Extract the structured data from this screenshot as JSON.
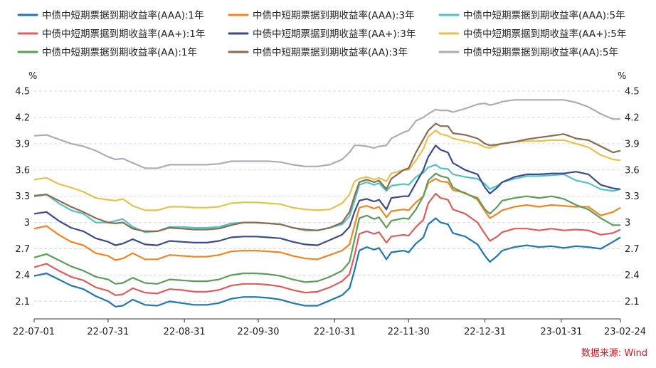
{
  "chart_data": {
    "type": "line",
    "y_unit_left": "%",
    "y_unit_right": "%",
    "ylim": [
      1.9,
      4.5
    ],
    "y_ticks": [
      "4.5",
      "4.2",
      "3.9",
      "3.6",
      "3.3",
      "3",
      "2.7",
      "2.4",
      "2.1"
    ],
    "y_tick_values": [
      4.5,
      4.2,
      3.9,
      3.6,
      3.3,
      3.0,
      2.7,
      2.4,
      2.1
    ],
    "x_ticks": [
      "22-07-01",
      "22-07-31",
      "22-08-31",
      "22-09-30",
      "22-10-31",
      "22-11-30",
      "22-12-31",
      "23-01-31",
      "23-02-24"
    ],
    "x_tick_positions": [
      0,
      30,
      61,
      91,
      122,
      152,
      183,
      214,
      238
    ],
    "x_range": [
      0,
      238
    ],
    "grid": "horizontal-dashed",
    "legend_position": "top",
    "source": "数据来源: Wind",
    "series": [
      {
        "name": "中债中短期票据到期收益率(AAA):1年",
        "color": "#1f77b4",
        "x": [
          0,
          5,
          10,
          15,
          20,
          25,
          30,
          33,
          36,
          40,
          45,
          50,
          55,
          60,
          65,
          70,
          75,
          80,
          85,
          90,
          95,
          100,
          105,
          110,
          115,
          120,
          125,
          128,
          130,
          132,
          135,
          138,
          140,
          143,
          145,
          150,
          152,
          155,
          158,
          160,
          163,
          165,
          168,
          170,
          175,
          180,
          183,
          185,
          188,
          190,
          195,
          200,
          205,
          210,
          215,
          220,
          225,
          230,
          235,
          238
        ],
        "y": [
          2.39,
          2.42,
          2.35,
          2.28,
          2.24,
          2.16,
          2.1,
          2.04,
          2.05,
          2.12,
          2.06,
          2.05,
          2.1,
          2.08,
          2.06,
          2.06,
          2.08,
          2.13,
          2.15,
          2.15,
          2.14,
          2.12,
          2.08,
          2.05,
          2.05,
          2.11,
          2.17,
          2.25,
          2.45,
          2.68,
          2.72,
          2.69,
          2.71,
          2.58,
          2.66,
          2.68,
          2.66,
          2.76,
          2.83,
          2.98,
          3.05,
          3.0,
          2.98,
          2.88,
          2.84,
          2.75,
          2.62,
          2.55,
          2.62,
          2.68,
          2.72,
          2.74,
          2.72,
          2.73,
          2.71,
          2.73,
          2.72,
          2.7,
          2.78,
          2.83
        ]
      },
      {
        "name": "中债中短期票据到期收益率(AAA):3年",
        "color": "#f5841f",
        "x": [
          0,
          5,
          10,
          15,
          20,
          25,
          30,
          33,
          36,
          40,
          45,
          50,
          55,
          60,
          65,
          70,
          75,
          80,
          85,
          90,
          95,
          100,
          105,
          110,
          115,
          120,
          125,
          128,
          130,
          132,
          135,
          138,
          140,
          143,
          145,
          150,
          152,
          155,
          158,
          160,
          163,
          165,
          168,
          170,
          175,
          180,
          183,
          185,
          188,
          190,
          195,
          200,
          205,
          210,
          215,
          220,
          225,
          230,
          235,
          238
        ],
        "y": [
          2.93,
          2.96,
          2.86,
          2.78,
          2.74,
          2.65,
          2.62,
          2.57,
          2.59,
          2.65,
          2.58,
          2.58,
          2.63,
          2.62,
          2.61,
          2.61,
          2.63,
          2.67,
          2.68,
          2.68,
          2.67,
          2.66,
          2.62,
          2.59,
          2.58,
          2.63,
          2.68,
          2.75,
          2.96,
          3.17,
          3.19,
          3.16,
          3.18,
          3.06,
          3.13,
          3.15,
          3.14,
          3.23,
          3.3,
          3.45,
          3.5,
          3.47,
          3.46,
          3.37,
          3.34,
          3.26,
          3.13,
          3.05,
          3.1,
          3.14,
          3.18,
          3.2,
          3.18,
          3.2,
          3.19,
          3.18,
          3.18,
          3.08,
          3.12,
          3.17
        ]
      },
      {
        "name": "中债中短期票据到期收益率(AAA):5年",
        "color": "#4fc3c7",
        "x": [
          0,
          5,
          10,
          15,
          20,
          25,
          30,
          33,
          36,
          40,
          45,
          50,
          55,
          60,
          65,
          70,
          75,
          80,
          85,
          90,
          95,
          100,
          105,
          110,
          115,
          120,
          125,
          128,
          130,
          132,
          135,
          138,
          140,
          143,
          145,
          150,
          152,
          155,
          158,
          160,
          163,
          165,
          168,
          170,
          175,
          180,
          183,
          185,
          188,
          190,
          195,
          200,
          205,
          210,
          215,
          220,
          225,
          230,
          235,
          238
        ],
        "y": [
          3.31,
          3.32,
          3.22,
          3.14,
          3.1,
          3.0,
          3.0,
          3.02,
          3.04,
          2.95,
          2.89,
          2.9,
          2.95,
          2.95,
          2.94,
          2.94,
          2.95,
          2.99,
          3.0,
          3.0,
          2.99,
          2.98,
          2.94,
          2.91,
          2.91,
          2.94,
          2.98,
          3.07,
          3.24,
          3.43,
          3.46,
          3.43,
          3.45,
          3.36,
          3.42,
          3.44,
          3.43,
          3.52,
          3.57,
          3.63,
          3.66,
          3.62,
          3.61,
          3.55,
          3.52,
          3.5,
          3.44,
          3.38,
          3.42,
          3.46,
          3.5,
          3.53,
          3.53,
          3.54,
          3.55,
          3.48,
          3.45,
          3.38,
          3.36,
          3.38
        ]
      },
      {
        "name": "中债中短期票据到期收益率(AA+):1年",
        "color": "#e35a5a",
        "x": [
          0,
          5,
          10,
          15,
          20,
          25,
          30,
          33,
          36,
          40,
          45,
          50,
          55,
          60,
          65,
          70,
          75,
          80,
          85,
          90,
          95,
          100,
          105,
          110,
          115,
          120,
          125,
          128,
          130,
          132,
          135,
          138,
          140,
          143,
          145,
          150,
          152,
          155,
          158,
          160,
          163,
          165,
          168,
          170,
          175,
          180,
          183,
          185,
          188,
          190,
          195,
          200,
          205,
          210,
          215,
          220,
          225,
          230,
          235,
          238
        ],
        "y": [
          2.49,
          2.53,
          2.45,
          2.38,
          2.34,
          2.26,
          2.22,
          2.17,
          2.18,
          2.25,
          2.2,
          2.19,
          2.24,
          2.23,
          2.21,
          2.21,
          2.23,
          2.28,
          2.3,
          2.3,
          2.29,
          2.27,
          2.23,
          2.2,
          2.21,
          2.26,
          2.33,
          2.41,
          2.62,
          2.87,
          2.9,
          2.87,
          2.89,
          2.77,
          2.84,
          2.86,
          2.85,
          2.95,
          3.03,
          3.22,
          3.33,
          3.28,
          3.26,
          3.15,
          3.1,
          3.0,
          2.87,
          2.79,
          2.84,
          2.89,
          2.93,
          2.93,
          2.91,
          2.93,
          2.91,
          2.92,
          2.91,
          2.86,
          2.88,
          2.92
        ]
      },
      {
        "name": "中债中短期票据到期收益率(AA+):3年",
        "color": "#3a4a8c",
        "x": [
          0,
          5,
          10,
          15,
          20,
          25,
          30,
          33,
          36,
          40,
          45,
          50,
          55,
          60,
          65,
          70,
          75,
          80,
          85,
          90,
          95,
          100,
          105,
          110,
          115,
          120,
          125,
          128,
          130,
          132,
          135,
          138,
          140,
          143,
          145,
          150,
          152,
          155,
          158,
          160,
          163,
          165,
          168,
          170,
          175,
          180,
          183,
          185,
          188,
          190,
          195,
          200,
          205,
          210,
          215,
          220,
          225,
          230,
          235,
          238
        ],
        "y": [
          3.1,
          3.12,
          3.02,
          2.94,
          2.9,
          2.82,
          2.78,
          2.74,
          2.76,
          2.81,
          2.75,
          2.74,
          2.79,
          2.78,
          2.77,
          2.77,
          2.79,
          2.83,
          2.84,
          2.84,
          2.83,
          2.82,
          2.78,
          2.75,
          2.74,
          2.8,
          2.86,
          2.95,
          3.12,
          3.25,
          3.27,
          3.24,
          3.26,
          3.15,
          3.28,
          3.3,
          3.3,
          3.45,
          3.6,
          3.75,
          3.88,
          3.83,
          3.8,
          3.68,
          3.6,
          3.55,
          3.4,
          3.33,
          3.4,
          3.46,
          3.52,
          3.55,
          3.55,
          3.56,
          3.56,
          3.58,
          3.55,
          3.43,
          3.39,
          3.38
        ]
      },
      {
        "name": "中债中短期票据到期收益率(AA+):5年",
        "color": "#e6c24a",
        "x": [
          0,
          5,
          10,
          15,
          20,
          25,
          30,
          33,
          36,
          40,
          45,
          50,
          55,
          60,
          65,
          70,
          75,
          80,
          85,
          90,
          95,
          100,
          105,
          110,
          115,
          120,
          125,
          128,
          130,
          132,
          135,
          138,
          140,
          143,
          145,
          150,
          152,
          155,
          158,
          160,
          163,
          165,
          168,
          170,
          175,
          180,
          183,
          185,
          188,
          190,
          195,
          200,
          205,
          210,
          215,
          220,
          225,
          230,
          235,
          238
        ],
        "y": [
          3.49,
          3.51,
          3.44,
          3.4,
          3.35,
          3.28,
          3.26,
          3.25,
          3.27,
          3.19,
          3.14,
          3.14,
          3.18,
          3.18,
          3.17,
          3.17,
          3.18,
          3.22,
          3.23,
          3.23,
          3.22,
          3.21,
          3.17,
          3.15,
          3.14,
          3.15,
          3.22,
          3.32,
          3.47,
          3.5,
          3.52,
          3.49,
          3.51,
          3.47,
          3.56,
          3.6,
          3.6,
          3.71,
          3.84,
          3.98,
          4.05,
          4.01,
          3.99,
          3.96,
          3.93,
          3.9,
          3.86,
          3.85,
          3.88,
          3.9,
          3.92,
          3.93,
          3.93,
          3.94,
          3.94,
          3.9,
          3.86,
          3.77,
          3.72,
          3.71
        ]
      },
      {
        "name": "中债中短期票据到期收益率(AA):1年",
        "color": "#5a9e5a",
        "x": [
          0,
          5,
          10,
          15,
          20,
          25,
          30,
          33,
          36,
          40,
          45,
          50,
          55,
          60,
          65,
          70,
          75,
          80,
          85,
          90,
          95,
          100,
          105,
          110,
          115,
          120,
          125,
          128,
          130,
          132,
          135,
          138,
          140,
          143,
          145,
          150,
          152,
          155,
          158,
          160,
          163,
          165,
          168,
          170,
          175,
          180,
          183,
          185,
          188,
          190,
          195,
          200,
          205,
          210,
          215,
          220,
          225,
          230,
          235,
          238
        ],
        "y": [
          2.6,
          2.64,
          2.57,
          2.5,
          2.45,
          2.38,
          2.35,
          2.3,
          2.31,
          2.37,
          2.31,
          2.3,
          2.35,
          2.34,
          2.33,
          2.33,
          2.35,
          2.4,
          2.42,
          2.42,
          2.41,
          2.39,
          2.35,
          2.32,
          2.33,
          2.38,
          2.45,
          2.55,
          2.8,
          3.05,
          3.08,
          3.04,
          3.06,
          2.94,
          3.02,
          3.05,
          3.04,
          3.15,
          3.3,
          3.48,
          3.56,
          3.53,
          3.51,
          3.4,
          3.33,
          3.28,
          3.15,
          3.1,
          3.18,
          3.25,
          3.28,
          3.3,
          3.28,
          3.3,
          3.27,
          3.2,
          3.15,
          3.05,
          2.97,
          2.97
        ]
      },
      {
        "name": "中债中短期票据到期收益率(AA):3年",
        "color": "#8b6a4e",
        "x": [
          0,
          5,
          10,
          15,
          20,
          25,
          30,
          33,
          36,
          40,
          45,
          50,
          55,
          60,
          65,
          70,
          75,
          80,
          85,
          90,
          95,
          100,
          105,
          110,
          115,
          120,
          125,
          128,
          130,
          132,
          135,
          138,
          140,
          143,
          145,
          150,
          152,
          155,
          158,
          160,
          163,
          165,
          168,
          170,
          175,
          180,
          183,
          185,
          188,
          190,
          195,
          200,
          205,
          210,
          215,
          220,
          225,
          230,
          235,
          238
        ],
        "y": [
          3.3,
          3.32,
          3.25,
          3.18,
          3.12,
          3.05,
          3.0,
          2.99,
          3.0,
          2.93,
          2.9,
          2.9,
          2.94,
          2.93,
          2.92,
          2.92,
          2.93,
          2.97,
          3.0,
          3.0,
          2.99,
          2.98,
          2.94,
          2.92,
          2.91,
          2.94,
          3.0,
          3.12,
          3.3,
          3.46,
          3.49,
          3.46,
          3.48,
          3.38,
          3.5,
          3.6,
          3.62,
          3.8,
          3.95,
          4.05,
          4.13,
          4.1,
          4.1,
          4.02,
          4.0,
          3.96,
          3.9,
          3.88,
          3.89,
          3.9,
          3.92,
          3.95,
          3.97,
          3.99,
          4.01,
          3.96,
          3.94,
          3.87,
          3.8,
          3.82
        ]
      },
      {
        "name": "中债中短期票据到期收益率(AA):5年",
        "color": "#a8adb8",
        "x": [
          0,
          5,
          10,
          15,
          20,
          25,
          30,
          33,
          36,
          40,
          45,
          50,
          55,
          60,
          65,
          70,
          75,
          80,
          85,
          90,
          95,
          100,
          105,
          110,
          115,
          120,
          125,
          128,
          130,
          132,
          135,
          138,
          140,
          143,
          145,
          150,
          152,
          155,
          158,
          160,
          163,
          165,
          168,
          170,
          175,
          180,
          183,
          185,
          188,
          190,
          195,
          200,
          205,
          210,
          215,
          220,
          225,
          230,
          235,
          238
        ],
        "y": [
          3.99,
          4.0,
          3.95,
          3.9,
          3.87,
          3.82,
          3.75,
          3.72,
          3.73,
          3.68,
          3.62,
          3.62,
          3.66,
          3.66,
          3.66,
          3.66,
          3.67,
          3.7,
          3.7,
          3.7,
          3.7,
          3.69,
          3.66,
          3.64,
          3.64,
          3.66,
          3.72,
          3.8,
          3.88,
          3.88,
          3.87,
          3.85,
          3.87,
          3.88,
          3.96,
          4.03,
          4.05,
          4.16,
          4.2,
          4.24,
          4.29,
          4.28,
          4.28,
          4.26,
          4.3,
          4.35,
          4.36,
          4.34,
          4.36,
          4.38,
          4.4,
          4.4,
          4.4,
          4.4,
          4.4,
          4.37,
          4.32,
          4.24,
          4.18,
          4.18
        ]
      }
    ]
  }
}
